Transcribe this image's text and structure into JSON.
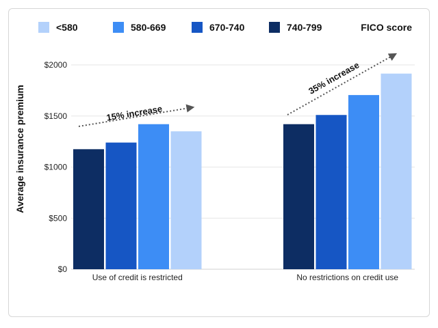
{
  "chart_data": {
    "type": "bar",
    "categories": [
      "Use of credit is restricted",
      "No restrictions on credit use"
    ],
    "series": [
      {
        "name": "740-799",
        "color": "#0d2d63",
        "values": [
          1175,
          1420
        ]
      },
      {
        "name": "670-740",
        "color": "#1656c4",
        "values": [
          1240,
          1510
        ]
      },
      {
        "name": "580-669",
        "color": "#3d8df5",
        "values": [
          1420,
          1705
        ]
      },
      {
        "name": "<580",
        "color": "#b3d1fb",
        "values": [
          1350,
          1915
        ]
      }
    ],
    "legend_order": [
      "<580",
      "580-669",
      "670-740",
      "740-799"
    ],
    "legend_title": "FICO score",
    "ylabel": "Average insurance premium",
    "ylim": [
      0,
      2000
    ],
    "yticks": [
      0,
      500,
      1000,
      1500,
      2000
    ],
    "ytick_labels": [
      "$0",
      "$500",
      "$1000",
      "$1500",
      "$2000"
    ],
    "grid": true,
    "annotations": [
      {
        "text": "15% increase",
        "category": 0
      },
      {
        "text": "35% increase",
        "category": 1
      }
    ]
  }
}
